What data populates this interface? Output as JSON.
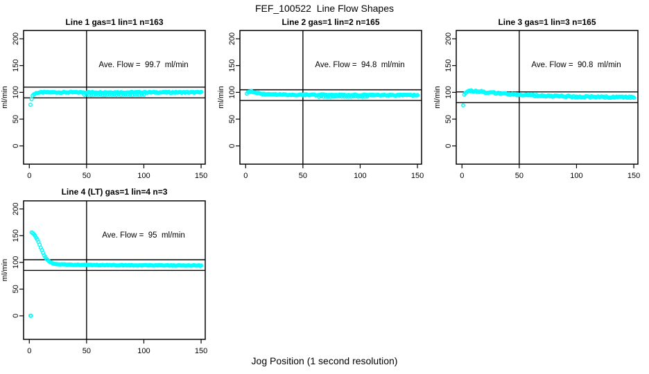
{
  "figure": {
    "title": "FEF_100522  Line Flow Shapes",
    "xlabel": "Jog Position (1 second resolution)",
    "point_color": "#00FFFF",
    "line_color": "#000000",
    "background": "#FFFFFF"
  },
  "chart_data": [
    {
      "type": "scatter",
      "title": "Line 1 gas=1 lin=1 n=163",
      "annotation": "Ave. Flow =  99.7  ml/min",
      "ave_flow_ml_min": 99.7,
      "n": 163,
      "ylabel": "ml/min",
      "xticks": [
        0,
        50,
        100,
        150
      ],
      "yticks": [
        0,
        50,
        100,
        150,
        200
      ],
      "xlim": [
        -5.0,
        153.6
      ],
      "ylim": [
        -34.0,
        215.5
      ],
      "grid": "off",
      "marker": "open-circle",
      "vline": 50,
      "hlines": [
        109.7,
        89.7
      ],
      "row": 0,
      "col": 0,
      "series": [
        {
          "name": "flow",
          "step": 1,
          "jitter": 1.0,
          "keypoints": [
            [
              1,
              76
            ],
            [
              2,
              88
            ],
            [
              3,
              94
            ],
            [
              4,
              96.5
            ],
            [
              5,
              97.5
            ],
            [
              6,
              98.5
            ],
            [
              8,
              99.5
            ],
            [
              12,
              100
            ],
            [
              150,
              100
            ]
          ]
        },
        {
          "name": "flow-low-band",
          "step": 2,
          "jitter": 0.6,
          "keypoints": [
            [
              48,
              95.5
            ],
            [
              100,
              95.5
            ]
          ]
        }
      ]
    },
    {
      "type": "scatter",
      "title": "Line 2 gas=1 lin=2 n=165",
      "annotation": "Ave. Flow =  94.8  ml/min",
      "ave_flow_ml_min": 94.8,
      "n": 165,
      "ylabel": "ml/min",
      "xticks": [
        0,
        50,
        100,
        150
      ],
      "yticks": [
        0,
        50,
        100,
        150,
        200
      ],
      "xlim": [
        -5.0,
        153.6
      ],
      "ylim": [
        -34.0,
        215.5
      ],
      "grid": "off",
      "marker": "open-circle",
      "vline": 50,
      "hlines": [
        104.8,
        84.8
      ],
      "row": 0,
      "col": 1,
      "series": [
        {
          "name": "flow",
          "step": 1,
          "jitter": 1.0,
          "keypoints": [
            [
              1,
              97
            ],
            [
              2,
              99.5
            ],
            [
              4,
              101.5
            ],
            [
              6,
              101.5
            ],
            [
              9,
              99.5
            ],
            [
              12,
              97.5
            ],
            [
              16,
              96.5
            ],
            [
              22,
              96
            ],
            [
              40,
              95.5
            ],
            [
              80,
              95
            ],
            [
              150,
              94.5
            ]
          ]
        },
        {
          "name": "flow-low-band",
          "step": 2,
          "jitter": 0.7,
          "keypoints": [
            [
              64,
              92
            ],
            [
              107,
              92
            ]
          ]
        }
      ]
    },
    {
      "type": "scatter",
      "title": "Line 3 gas=1 lin=3 n=165",
      "annotation": "Ave. Flow =  90.8  ml/min",
      "ave_flow_ml_min": 90.8,
      "n": 165,
      "ylabel": "ml/min",
      "xticks": [
        0,
        50,
        100,
        150
      ],
      "yticks": [
        0,
        50,
        100,
        150,
        200
      ],
      "xlim": [
        -5.0,
        153.6
      ],
      "ylim": [
        -34.0,
        215.5
      ],
      "grid": "off",
      "marker": "open-circle",
      "vline": 50,
      "hlines": [
        100.8,
        80.8
      ],
      "row": 0,
      "col": 2,
      "series": [
        {
          "name": "flow",
          "step": 1,
          "jitter": 1.4,
          "keypoints": [
            [
              1,
              77
            ],
            [
              2,
              95.5
            ],
            [
              3,
              98.5
            ],
            [
              5,
              101
            ],
            [
              7,
              102.5
            ],
            [
              12,
              102.5
            ],
            [
              18,
              101
            ],
            [
              25,
              99.5
            ],
            [
              35,
              97.5
            ],
            [
              50,
              95.5
            ],
            [
              70,
              93.5
            ],
            [
              100,
              92
            ],
            [
              150,
              90.5
            ]
          ]
        }
      ]
    },
    {
      "type": "scatter",
      "title": "Line 4 (LT) gas=1 lin=4 n=3",
      "annotation": "Ave. Flow =  95  ml/min",
      "ave_flow_ml_min": 95,
      "n": 3,
      "ylabel": "ml/min",
      "xticks": [
        0,
        50,
        100,
        150
      ],
      "yticks": [
        0,
        50,
        100,
        150,
        200
      ],
      "xlim": [
        -5.0,
        153.6
      ],
      "ylim": [
        -44.1,
        215.2
      ],
      "grid": "off",
      "marker": "open-circle",
      "vline": 50,
      "hlines": [
        105,
        85
      ],
      "row": 1,
      "col": 0,
      "series": [
        {
          "name": "startup-zero",
          "step": 0.5,
          "jitter": 0.15,
          "keypoints": [
            [
              1,
              0
            ],
            [
              1.5,
              0
            ]
          ]
        },
        {
          "name": "flow",
          "step": 1,
          "jitter": 0.55,
          "keypoints": [
            [
              2,
              156
            ],
            [
              3,
              155
            ],
            [
              4,
              152.5
            ],
            [
              5,
              150
            ],
            [
              6,
              146.5
            ],
            [
              7,
              142.5
            ],
            [
              8,
              138
            ],
            [
              9,
              133
            ],
            [
              10,
              128
            ],
            [
              11,
              123
            ],
            [
              12,
              118
            ],
            [
              13,
              113.5
            ],
            [
              14,
              109.5
            ],
            [
              15,
              106.5
            ],
            [
              16,
              104
            ],
            [
              17,
              102.5
            ],
            [
              18,
              101
            ],
            [
              19,
              99.5
            ],
            [
              20,
              98.5
            ],
            [
              22,
              97.5
            ],
            [
              25,
              96.5
            ],
            [
              30,
              96
            ],
            [
              40,
              95.5
            ],
            [
              60,
              95
            ],
            [
              100,
              94.5
            ],
            [
              150,
              94
            ]
          ]
        }
      ]
    }
  ]
}
